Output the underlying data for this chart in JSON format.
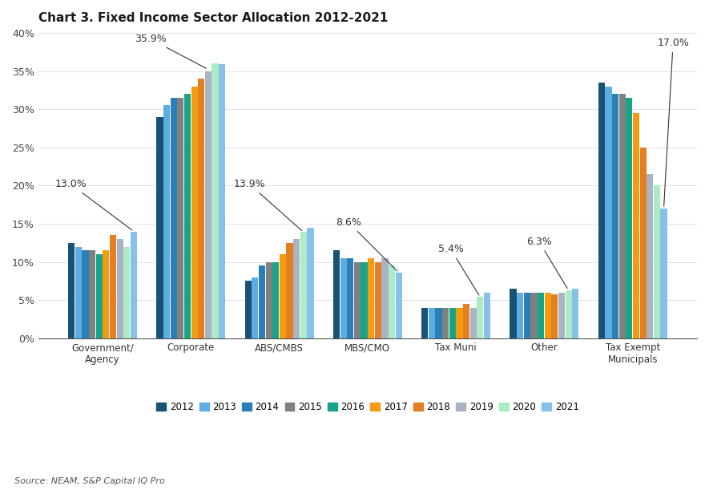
{
  "title": "Chart 3. Fixed Income Sector Allocation 2012-2021",
  "source": "Source: NEAM, S&P Capital IQ Pro",
  "categories": [
    "Government/\nAgency",
    "Corporate",
    "ABS/CMBS",
    "MBS/CMO",
    "Tax Muni",
    "Other",
    "Tax Exempt\nMunicipals"
  ],
  "years": [
    "2012",
    "2013",
    "2014",
    "2015",
    "2016",
    "2017",
    "2018",
    "2019",
    "2020",
    "2021"
  ],
  "colors": [
    "#1a5276",
    "#5dade2",
    "#2980b9",
    "#808080",
    "#17a589",
    "#f39c12",
    "#e67e22",
    "#a9b4c4",
    "#abebc6",
    "#85c1e9"
  ],
  "data": {
    "Government/\nAgency": [
      12.5,
      12.0,
      11.5,
      11.5,
      11.0,
      11.5,
      13.5,
      13.0,
      12.0,
      14.0
    ],
    "Corporate": [
      29.0,
      30.5,
      31.5,
      31.5,
      32.0,
      33.0,
      34.0,
      35.0,
      36.0,
      35.9
    ],
    "ABS/CMBS": [
      7.5,
      8.0,
      9.5,
      10.0,
      10.0,
      11.0,
      12.5,
      13.0,
      13.9,
      14.5
    ],
    "MBS/CMO": [
      11.5,
      10.5,
      10.5,
      10.0,
      10.0,
      10.5,
      10.0,
      10.5,
      9.5,
      8.6
    ],
    "Tax Muni": [
      4.0,
      4.0,
      4.0,
      4.0,
      4.0,
      4.0,
      4.5,
      4.0,
      5.4,
      6.0
    ],
    "Other": [
      6.5,
      6.0,
      6.0,
      6.0,
      6.0,
      6.0,
      5.8,
      6.0,
      6.3,
      6.5
    ],
    "Tax Exempt\nMunicipals": [
      33.5,
      33.0,
      32.0,
      32.0,
      31.5,
      29.5,
      25.0,
      21.5,
      20.0,
      17.0
    ]
  },
  "ylim": [
    0,
    40
  ],
  "yticks": [
    0,
    5,
    10,
    15,
    20,
    25,
    30,
    35,
    40
  ],
  "annotation_color": "#333333",
  "annotation_fontsize": 9
}
